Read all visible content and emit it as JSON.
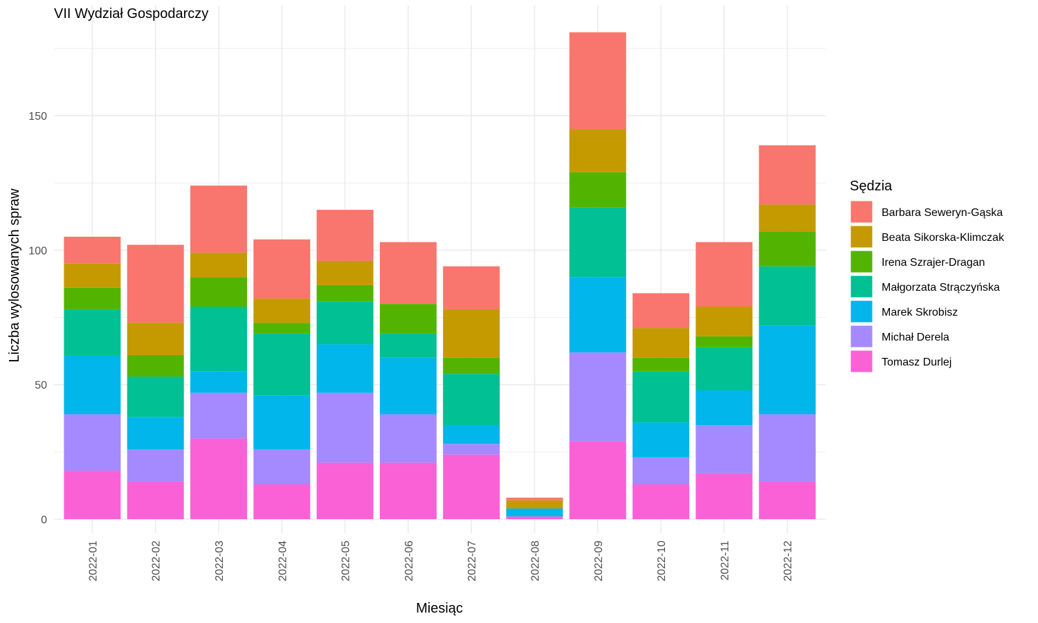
{
  "chart_data": {
    "type": "bar",
    "stacked": true,
    "title": "VII Wydział Gospodarczy",
    "xlabel": "Miesiąc",
    "ylabel": "Liczba wylosowanych spraw",
    "legend_title": "Sędzia",
    "legend_position": "right",
    "grid": true,
    "ylim": [
      0,
      185
    ],
    "yticks": [
      0,
      50,
      100,
      150
    ],
    "categories": [
      "2022-01",
      "2022-02",
      "2022-03",
      "2022-04",
      "2022-05",
      "2022-06",
      "2022-07",
      "2022-08",
      "2022-09",
      "2022-10",
      "2022-11",
      "2022-12"
    ],
    "series": [
      {
        "name": "Barbara Seweryn-Gąska",
        "color": "#F8766D",
        "values": [
          10,
          29,
          25,
          22,
          19,
          23,
          16,
          1,
          36,
          13,
          24,
          22
        ]
      },
      {
        "name": "Beata Sikorska-Klimczak",
        "color": "#C49A00",
        "values": [
          9,
          12,
          9,
          9,
          9,
          0,
          18,
          3,
          16,
          11,
          11,
          10
        ]
      },
      {
        "name": "Irena Szrajer-Dragan",
        "color": "#53B400",
        "values": [
          8,
          8,
          11,
          4,
          6,
          11,
          6,
          0,
          13,
          5,
          4,
          13
        ]
      },
      {
        "name": "Małgorzata Strączyńska",
        "color": "#00C094",
        "values": [
          17,
          15,
          24,
          23,
          16,
          9,
          19,
          0,
          26,
          19,
          16,
          22
        ]
      },
      {
        "name": "Marek Skrobisz",
        "color": "#00B6EB",
        "values": [
          22,
          12,
          8,
          20,
          18,
          21,
          7,
          3,
          28,
          13,
          13,
          33
        ]
      },
      {
        "name": "Michał Derela",
        "color": "#A58AFF",
        "values": [
          21,
          12,
          17,
          13,
          26,
          18,
          4,
          0,
          33,
          10,
          18,
          25
        ]
      },
      {
        "name": "Tomasz Durlej",
        "color": "#FB61D7",
        "values": [
          18,
          14,
          30,
          13,
          21,
          21,
          24,
          1,
          29,
          13,
          17,
          14
        ]
      }
    ]
  }
}
